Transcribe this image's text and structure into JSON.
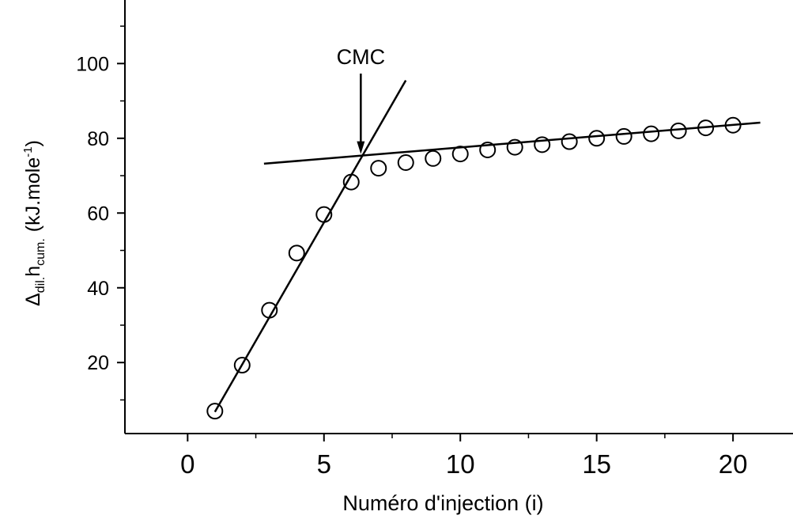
{
  "chart_data": {
    "type": "scatter",
    "title": "",
    "xlabel": "Numéro d'injection (i)",
    "ylabel": {
      "main": "Δ",
      "main_sub": "dil.",
      "var": "h",
      "var_sub": "cum.",
      "units_open": "(kJ.mole",
      "units_sup": "-1",
      "units_close": ")"
    },
    "xlim": [
      -2.3,
      22.2
    ],
    "ylim": [
      1,
      117
    ],
    "x_ticks": [
      0,
      5,
      10,
      15,
      20
    ],
    "y_ticks": [
      20,
      40,
      60,
      80,
      100
    ],
    "x_tick_labels": [
      "0",
      "5",
      "10",
      "15",
      "20"
    ],
    "y_tick_labels": [
      "20",
      "40",
      "60",
      "80",
      "100"
    ],
    "grid": false,
    "series": [
      {
        "marker": "open-circle",
        "x": [
          1,
          2,
          3,
          4,
          5,
          6,
          7,
          8,
          9,
          10,
          11,
          12,
          13,
          14,
          15,
          16,
          17,
          18,
          19,
          20
        ],
        "y": [
          7.0,
          19.3,
          34.0,
          49.3,
          59.6,
          68.3,
          72.0,
          73.5,
          74.6,
          75.8,
          76.9,
          77.6,
          78.3,
          79.1,
          80.0,
          80.5,
          81.2,
          82.0,
          82.8,
          83.5
        ]
      }
    ],
    "fit_lines": [
      {
        "x": [
          1,
          8
        ],
        "y": [
          6.8,
          95.5
        ]
      },
      {
        "x": [
          2.8,
          21
        ],
        "y": [
          73.2,
          84.2
        ]
      }
    ],
    "annotations": [
      {
        "text": "CMC",
        "arrow_to": {
          "x": 6.35,
          "y": 75.8
        }
      }
    ]
  }
}
